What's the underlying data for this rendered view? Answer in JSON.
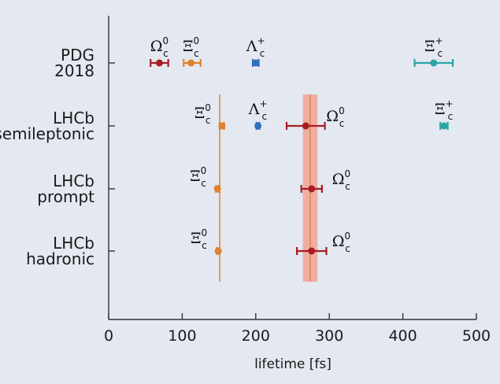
{
  "colors": {
    "background": "#e3e8f1",
    "axis": "#333333",
    "omega": "#a71d22",
    "xi0": "#e0822c",
    "lambda": "#2f6fbe",
    "xiplus": "#2aa6a6",
    "band": "#f0a594",
    "band_line": "#e57f55"
  },
  "chart_data": {
    "type": "scatter",
    "subtype": "horizontal-error-bars",
    "xlabel": "lifetime [fs]",
    "xlim": [
      0,
      500
    ],
    "xticks": [
      0,
      100,
      200,
      300,
      400,
      500
    ],
    "xtick_labels": [
      "0",
      "100",
      "200",
      "300",
      "400",
      "500"
    ],
    "grid": false,
    "rows": [
      {
        "label_line1": "PDG",
        "label_line2": "2018"
      },
      {
        "label_line1": "LHCb",
        "label_line2": "semileptonic"
      },
      {
        "label_line1": "LHCb",
        "label_line2": "prompt"
      },
      {
        "label_line1": "LHCb",
        "label_line2": "hadronic"
      }
    ],
    "points": [
      {
        "row": 0,
        "particle": "Omega_c0",
        "value": 69,
        "err_low": 12,
        "err_high": 12,
        "color": "omega",
        "symbol": "Ω",
        "sup": "0",
        "sub": "c",
        "label_side": "above"
      },
      {
        "row": 0,
        "particle": "Xi_c0",
        "value": 112,
        "err_low": 10,
        "err_high": 13,
        "color": "xi0",
        "symbol": "Ξ",
        "sup": "0",
        "sub": "c",
        "label_side": "above"
      },
      {
        "row": 0,
        "particle": "Lambda_c+",
        "value": 200,
        "err_low": 4,
        "err_high": 4,
        "color": "lambda",
        "symbol": "Λ",
        "sup": "+",
        "sub": "c",
        "label_side": "above"
      },
      {
        "row": 0,
        "particle": "Xi_c+",
        "value": 442,
        "err_low": 26,
        "err_high": 26,
        "color": "xiplus",
        "symbol": "Ξ",
        "sup": "+",
        "sub": "c",
        "label_side": "above"
      },
      {
        "row": 1,
        "particle": "Xi_c0",
        "value": 154,
        "err_low": 3,
        "err_high": 3,
        "color": "xi0",
        "symbol": "Ξ",
        "sup": "0",
        "sub": "c",
        "label_side": "left"
      },
      {
        "row": 1,
        "particle": "Lambda_c+",
        "value": 203,
        "err_low": 2,
        "err_high": 2,
        "color": "lambda",
        "symbol": "Λ",
        "sup": "+",
        "sub": "c",
        "label_side": "above"
      },
      {
        "row": 1,
        "particle": "Omega_c0",
        "value": 268,
        "err_low": 26,
        "err_high": 26,
        "color": "omega",
        "symbol": "Ω",
        "sup": "0",
        "sub": "c",
        "label_side": "right"
      },
      {
        "row": 1,
        "particle": "Xi_c+",
        "value": 456,
        "err_low": 5,
        "err_high": 5,
        "color": "xiplus",
        "symbol": "Ξ",
        "sup": "+",
        "sub": "c",
        "label_side": "above"
      },
      {
        "row": 2,
        "particle": "Xi_c0",
        "value": 148,
        "err_low": 2,
        "err_high": 2,
        "color": "xi0",
        "symbol": "Ξ",
        "sup": "0",
        "sub": "c",
        "label_side": "left"
      },
      {
        "row": 2,
        "particle": "Omega_c0",
        "value": 276,
        "err_low": 14,
        "err_high": 14,
        "color": "omega",
        "symbol": "Ω",
        "sup": "0",
        "sub": "c",
        "label_side": "right"
      },
      {
        "row": 3,
        "particle": "Xi_c0",
        "value": 149,
        "err_low": 2,
        "err_high": 2,
        "color": "xi0",
        "symbol": "Ξ",
        "sup": "0",
        "sub": "c",
        "label_side": "left"
      },
      {
        "row": 3,
        "particle": "Omega_c0",
        "value": 276,
        "err_low": 20,
        "err_high": 20,
        "color": "omega",
        "symbol": "Ω",
        "sup": "0",
        "sub": "c",
        "label_side": "right"
      }
    ],
    "reference_lines": [
      {
        "particle": "Xi_c0",
        "value": 151,
        "color": "xi0"
      }
    ],
    "reference_bands": [
      {
        "particle": "Omega_c0",
        "value": 274,
        "low": 264,
        "high": 284,
        "color": "band",
        "line_color": "band_line"
      }
    ]
  }
}
